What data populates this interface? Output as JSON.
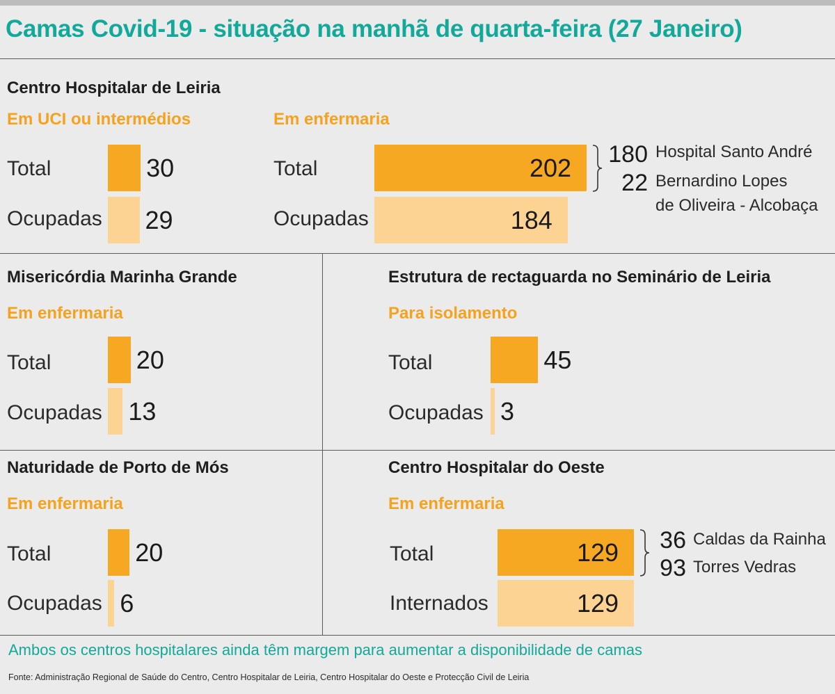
{
  "title": "Camas Covid-19 - situação na manhã de quarta-feira (27 Janeiro)",
  "colors": {
    "title": "#13a99a",
    "total_bar": "#f6a823",
    "occupied_bar": "#fdd394",
    "subtitle": "#f5a21e"
  },
  "chart_data": [
    {
      "type": "bar",
      "title": "Centro Hospitalar de Leiria",
      "subtitle": "Em UCI ou intermédios",
      "categories": [
        "Total",
        "Ocupadas"
      ],
      "values": [
        30,
        29
      ]
    },
    {
      "type": "bar",
      "title": "",
      "subtitle": "Em enfermaria",
      "categories": [
        "Total",
        "Ocupadas"
      ],
      "values": [
        202,
        184
      ],
      "breakdown": [
        {
          "value": 180,
          "label": "Hospital Santo André"
        },
        {
          "value": 22,
          "label": "Bernardino Lopes",
          "label2": "de Oliveira - Alcobaça"
        }
      ]
    },
    {
      "type": "bar",
      "title": "Misericórdia Marinha Grande",
      "subtitle": "Em enfermaria",
      "categories": [
        "Total",
        "Ocupadas"
      ],
      "values": [
        20,
        13
      ]
    },
    {
      "type": "bar",
      "title": "Estrutura de rectaguarda no Seminário de Leiria",
      "subtitle": "Para isolamento",
      "categories": [
        "Total",
        "Ocupadas"
      ],
      "values": [
        45,
        3
      ]
    },
    {
      "type": "bar",
      "title": "Naturidade de Porto de Mós",
      "subtitle": "Em enfermaria",
      "categories": [
        "Total",
        "Ocupadas"
      ],
      "values": [
        20,
        6
      ]
    },
    {
      "type": "bar",
      "title": "Centro Hospitalar do Oeste",
      "subtitle": "Em enfermaria",
      "categories": [
        "Total",
        "Internados"
      ],
      "values": [
        129,
        129
      ],
      "breakdown": [
        {
          "value": 36,
          "label": "Caldas da Rainha"
        },
        {
          "value": 93,
          "label": "Torres Vedras"
        }
      ]
    }
  ],
  "footnote": "Ambos os centros hospitalares ainda têm margem para aumentar a disponibilidade de camas",
  "source": "Fonte: Administração Regional de Saúde do Centro, Centro Hospitalar de Leiria, Centro Hospitalar do Oeste e Protecção Civil de Leiria"
}
